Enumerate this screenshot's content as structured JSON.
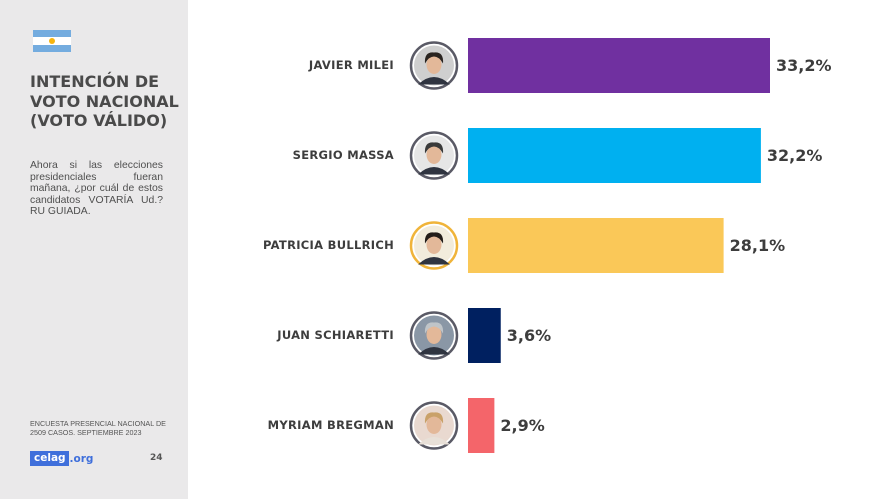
{
  "sidebar": {
    "title": "INTENCIÓN DE VOTO NACIONAL (VOTO VÁLIDO)",
    "question": "Ahora si las elecciones presidenciales fueran mañana, ¿por cuál de estos candidatos VOTARÍA Ud.? RU GUIADA.",
    "footnote": "ENCUESTA PRESENCIAL NACIONAL DE 2509 CASOS. SEPTIEMBRE 2023",
    "logo_main": "celag",
    "logo_suffix": ".org",
    "page_number": "24",
    "flag_colors": [
      "#74acdf",
      "#ffffff",
      "#74acdf"
    ]
  },
  "chart_data": {
    "type": "bar",
    "orientation": "horizontal",
    "categories": [
      "JAVIER MILEI",
      "SERGIO MASSA",
      "PATRICIA BULLRICH",
      "JUAN SCHIARETTI",
      "MYRIAM BREGMAN"
    ],
    "values": [
      33.2,
      32.2,
      28.1,
      3.6,
      2.9
    ],
    "value_labels": [
      "33,2%",
      "32,2%",
      "28,1%",
      "3,6%",
      "2,9%"
    ],
    "colors": [
      "#7030a0",
      "#00b0f0",
      "#fac858",
      "#002060",
      "#f4656a"
    ],
    "icons": [
      "avatar-milei",
      "avatar-massa",
      "avatar-bullrich",
      "avatar-schiaretti",
      "avatar-bregman"
    ],
    "title": "",
    "xlabel": "",
    "ylabel": "",
    "grid": false
  }
}
